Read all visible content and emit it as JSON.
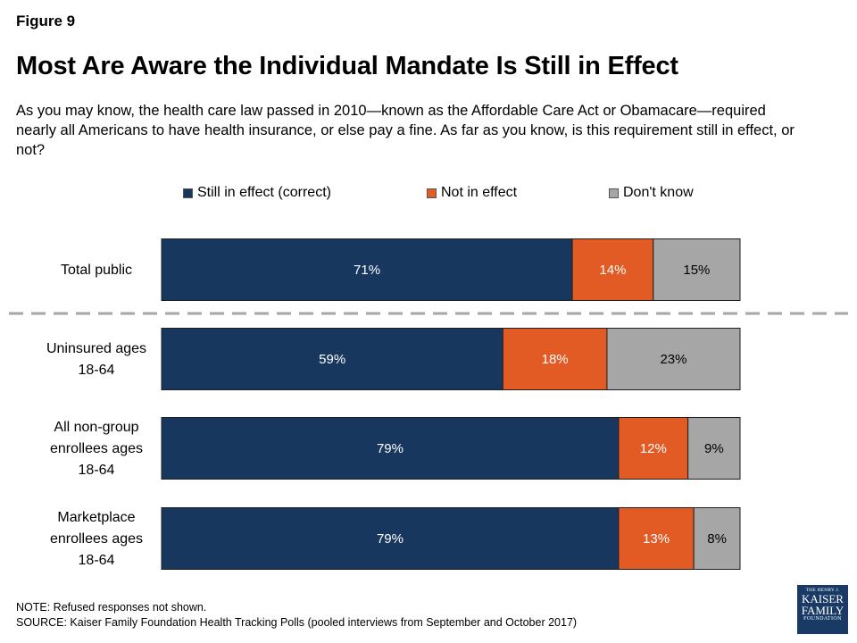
{
  "figure_label": "Figure 9",
  "title": "Most Are Aware the Individual Mandate Is Still in Effect",
  "subtitle": "As you may know, the health care law passed in 2010—known as the Affordable Care Act or Obamacare—required nearly all Americans to have health insurance, or else pay a fine. As far as you know, is this requirement still in effect, or not?",
  "legend": [
    {
      "label": "Still in effect (correct)",
      "color": "#17375e"
    },
    {
      "label": "Not in effect",
      "color": "#e35b24"
    },
    {
      "label": "Don't know",
      "color": "#a6a6a6"
    }
  ],
  "chart_data": {
    "type": "bar",
    "orientation": "horizontal",
    "stacked": true,
    "percent": true,
    "categories": [
      [
        "Total public"
      ],
      [
        "Uninsured ages",
        "18-64"
      ],
      [
        "All non-group",
        "enrollees ages",
        "18-64"
      ],
      [
        "Marketplace",
        "enrollees ages",
        "18-64"
      ]
    ],
    "series": [
      {
        "name": "Still in effect (correct)",
        "values": [
          71,
          59,
          79,
          79
        ],
        "color": "#17375e",
        "label_color": "#ffffff"
      },
      {
        "name": "Not in effect",
        "values": [
          14,
          18,
          12,
          13
        ],
        "color": "#e35b24",
        "label_color": "#ffffff"
      },
      {
        "name": "Don't know",
        "values": [
          15,
          23,
          9,
          8
        ],
        "color": "#a6a6a6",
        "label_color": "#000000"
      }
    ],
    "divider_after_category": 0
  },
  "note": "NOTE: Refused responses not shown.",
  "source": "SOURCE: Kaiser Family Foundation Health Tracking Polls (pooled interviews from September and October 2017)",
  "logo": {
    "line1": "THE HENRY J.",
    "line2": "KAISER",
    "line3": "FAMILY",
    "line4": "FOUNDATION"
  }
}
